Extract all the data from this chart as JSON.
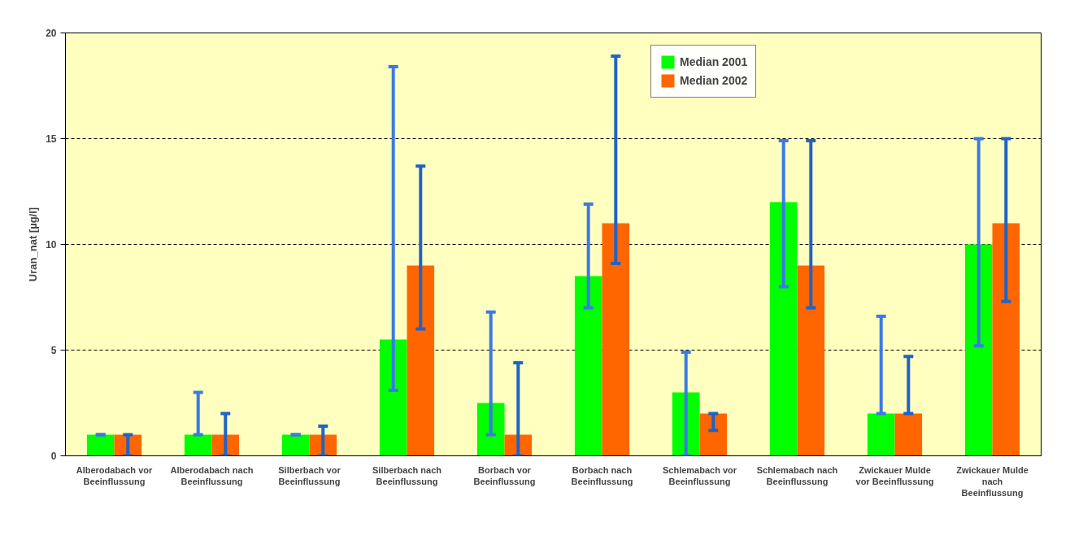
{
  "chart_data": {
    "type": "bar",
    "ylabel": "Uran_nat [µg/l]",
    "categories": [
      "Alberodabach vor Beeinflussung",
      "Alberodabach nach Beeinflussung",
      "Silberbach vor Beeinflussung",
      "Silberbach nach Beeinflussung",
      "Borbach vor Beeinflussung",
      "Borbach nach Beeinflussung",
      "Schlemabach vor Beeinflussung",
      "Schlemabach nach Beeinflussung",
      "Zwickauer Mulde vor Beeinflussung",
      "Zwickauer Mulde nach Beeinflussung"
    ],
    "series": [
      {
        "name": "Median 2001",
        "color": "#00ff00",
        "values": [
          1,
          1,
          1,
          5.5,
          2.5,
          8.5,
          3,
          12,
          2,
          10
        ],
        "errors": [
          [
            1,
            1
          ],
          [
            1,
            3
          ],
          [
            1,
            1
          ],
          [
            3.1,
            18.4
          ],
          [
            1,
            6.8
          ],
          [
            7,
            11.9
          ],
          [
            0,
            4.9
          ],
          [
            8,
            14.9
          ],
          [
            2,
            6.6
          ],
          [
            5.2,
            15
          ]
        ]
      },
      {
        "name": "Median 2002",
        "color": "#ff6600",
        "values": [
          1,
          1,
          1,
          9,
          1,
          11,
          2,
          9,
          2,
          11
        ],
        "errors": [
          [
            0,
            1
          ],
          [
            0,
            2
          ],
          [
            0,
            1.4
          ],
          [
            6,
            13.7
          ],
          [
            0,
            4.4
          ],
          [
            9.1,
            18.9
          ],
          [
            1.2,
            2
          ],
          [
            7,
            14.9
          ],
          [
            2,
            4.7
          ],
          [
            7.3,
            15
          ]
        ]
      }
    ],
    "ylim": [
      0,
      20
    ],
    "yticks": [
      0,
      5,
      10,
      15,
      20
    ],
    "grid": "y",
    "legend": "top"
  }
}
